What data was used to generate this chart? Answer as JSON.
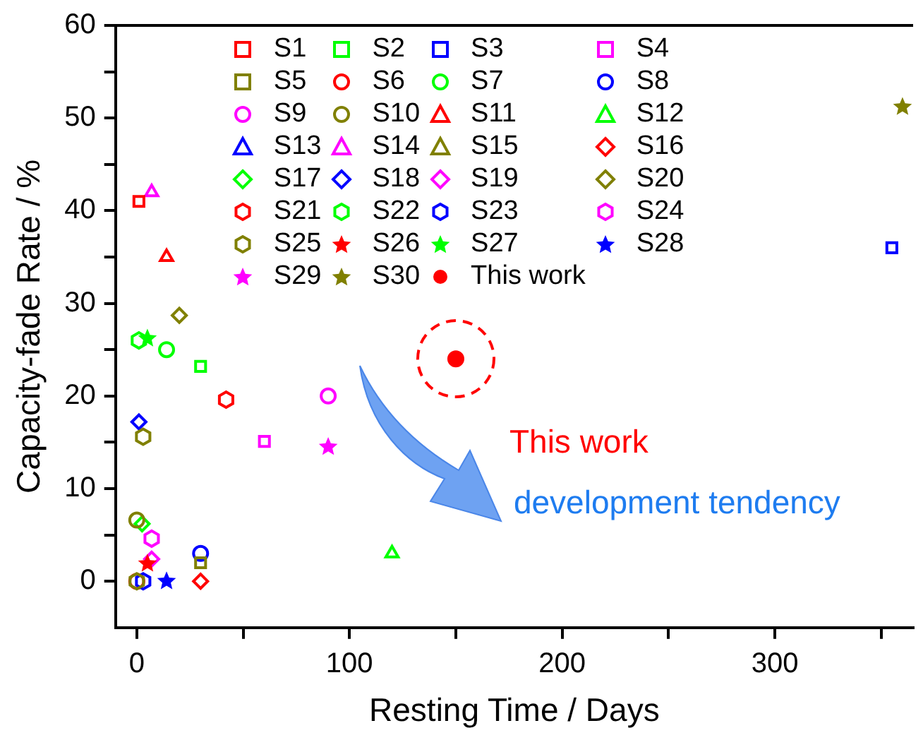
{
  "chart_data": {
    "type": "scatter",
    "xlabel": "Resting Time / Days",
    "ylabel": "Capacity-fade Rate / %",
    "xlim": [
      -10,
      365
    ],
    "xticks": [
      0,
      {
        "value": 50,
        "label": null
      },
      100,
      {
        "value": 150,
        "label": null
      },
      200,
      {
        "value": 250,
        "label": null
      },
      300,
      {
        "value": 350,
        "label": null
      }
    ],
    "ylim": [
      -5,
      60
    ],
    "yticks": [
      0,
      {
        "value": 5,
        "label": null
      },
      10,
      {
        "value": 15,
        "label": null
      },
      20,
      {
        "value": 25,
        "label": null
      },
      30,
      {
        "value": 35,
        "label": null
      },
      40,
      {
        "value": 45,
        "label": null
      },
      50,
      {
        "value": 55,
        "label": null
      },
      60
    ],
    "grid": false,
    "legend": "top",
    "annotations": [
      "This work",
      "development tendency"
    ],
    "series": [
      {
        "name": "S1",
        "color": "#ff0000",
        "marker": "square",
        "x": [
          1
        ],
        "values": [
          41
        ]
      },
      {
        "name": "S2",
        "color": "#00ff00",
        "marker": "square",
        "x": [
          30
        ],
        "values": [
          23.2
        ]
      },
      {
        "name": "S3",
        "color": "#0000ff",
        "marker": "square",
        "x": [
          355
        ],
        "values": [
          36
        ]
      },
      {
        "name": "S4",
        "color": "#ff00ff",
        "marker": "square",
        "x": [
          60
        ],
        "values": [
          15.1
        ]
      },
      {
        "name": "S5",
        "color": "#808000",
        "marker": "square",
        "x": [
          30
        ],
        "values": [
          2
        ]
      },
      {
        "name": "S6",
        "color": "#ff0000",
        "marker": "circle",
        "x": [
          0
        ],
        "values": [
          0
        ]
      },
      {
        "name": "S7",
        "color": "#00ff00",
        "marker": "circle",
        "x": [
          14
        ],
        "values": [
          25
        ]
      },
      {
        "name": "S8",
        "color": "#0000ff",
        "marker": "circle",
        "x": [
          30
        ],
        "values": [
          3
        ]
      },
      {
        "name": "S9",
        "color": "#ff00ff",
        "marker": "circle",
        "x": [
          90
        ],
        "values": [
          20
        ]
      },
      {
        "name": "S10",
        "color": "#808000",
        "marker": "circle",
        "x": [
          0
        ],
        "values": [
          6.6
        ]
      },
      {
        "name": "S11",
        "color": "#ff0000",
        "marker": "triangle",
        "x": [
          14
        ],
        "values": [
          35
        ]
      },
      {
        "name": "S12",
        "color": "#00ff00",
        "marker": "triangle",
        "x": [
          120
        ],
        "values": [
          3
        ]
      },
      {
        "name": "S13",
        "color": "#0000ff",
        "marker": "triangle"
      },
      {
        "name": "S14",
        "color": "#ff00ff",
        "marker": "triangle",
        "x": [
          7
        ],
        "values": [
          42
        ]
      },
      {
        "name": "S15",
        "color": "#808000",
        "marker": "triangle"
      },
      {
        "name": "S16",
        "color": "#ff0000",
        "marker": "diamond",
        "x": [
          30
        ],
        "values": [
          0
        ]
      },
      {
        "name": "S17",
        "color": "#00ff00",
        "marker": "diamond",
        "x": [
          2.5
        ],
        "values": [
          6.2
        ]
      },
      {
        "name": "S18",
        "color": "#0000ff",
        "marker": "diamond",
        "x": [
          1
        ],
        "values": [
          17.2
        ]
      },
      {
        "name": "S19",
        "color": "#ff00ff",
        "marker": "diamond",
        "x": [
          7
        ],
        "values": [
          2.4
        ]
      },
      {
        "name": "S20",
        "color": "#808000",
        "marker": "diamond",
        "x": [
          20
        ],
        "values": [
          28.7
        ]
      },
      {
        "name": "S21",
        "color": "#ff0000",
        "x": [
          42
        ],
        "values": [
          19.6
        ]
      },
      {
        "name": "S22",
        "color": "#00ff00",
        "x": [
          1
        ],
        "values": [
          26
        ]
      },
      {
        "name": "S23",
        "color": "#0000ff",
        "x": [
          3
        ],
        "values": [
          0
        ]
      },
      {
        "name": "S24",
        "color": "#ff00ff",
        "x": [
          7
        ],
        "values": [
          4.6
        ]
      },
      {
        "name": "S25",
        "color": "#808000",
        "x": [
          3,
          0
        ],
        "values": [
          15.6,
          0
        ]
      },
      {
        "name": "S26",
        "color": "#ff0000",
        "marker": "star",
        "x": [
          5
        ],
        "values": [
          1.9
        ]
      },
      {
        "name": "S27",
        "color": "#00ff00",
        "marker": "star",
        "x": [
          5
        ],
        "values": [
          26.2
        ]
      },
      {
        "name": "S28",
        "color": "#0000ff",
        "marker": "star",
        "x": [
          14
        ],
        "values": [
          0
        ]
      },
      {
        "name": "S29",
        "color": "#ff00ff",
        "marker": "star",
        "x": [
          90
        ],
        "values": [
          14.5
        ]
      },
      {
        "name": "S30",
        "color": "#808000",
        "marker": "star",
        "x": [
          360
        ],
        "values": [
          51.2
        ]
      },
      {
        "name": "This work",
        "color": "#ff0000",
        "marker": "circle",
        "x": [
          150
        ],
        "values": [
          24
        ]
      }
    ]
  }
}
